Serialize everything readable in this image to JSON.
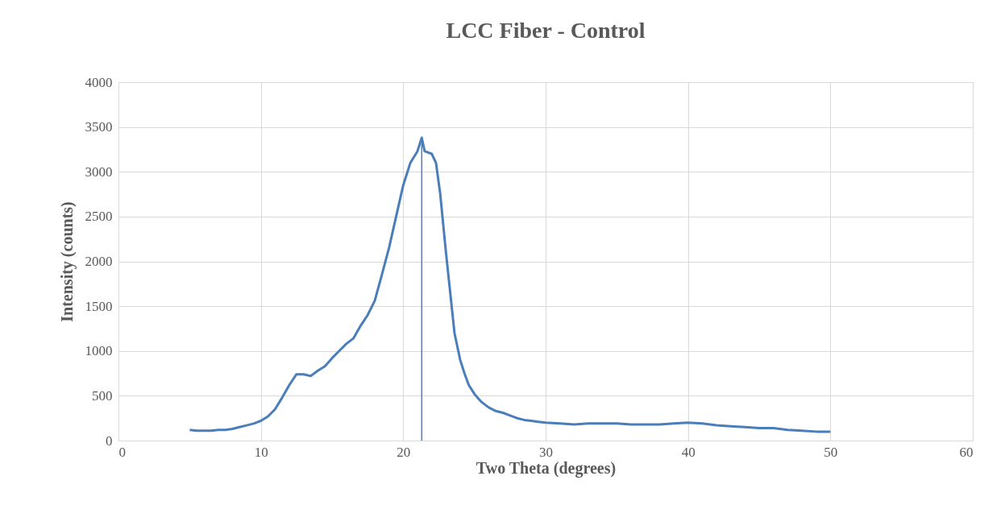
{
  "chart_data": {
    "type": "line",
    "title": "LCC Fiber - Control",
    "xlabel": "Two Theta (degrees)",
    "ylabel": "Intensity (counts)",
    "xlim": [
      0,
      60
    ],
    "xticks": [
      0,
      10,
      20,
      30,
      40,
      50,
      60
    ],
    "ylim": [
      0,
      4000
    ],
    "yticks": [
      0,
      500,
      1000,
      1500,
      2000,
      2500,
      3000,
      3500,
      4000
    ],
    "grid": true,
    "marker": "none",
    "line_style": "solid",
    "series": [
      {
        "color": "#4a7ebb",
        "x": [
          5,
          5.5,
          6,
          6.5,
          7,
          7.5,
          8,
          8.5,
          9,
          9.5,
          10,
          10.5,
          11,
          11.5,
          12,
          12.5,
          13,
          13.5,
          14,
          14.5,
          15,
          15.5,
          16,
          16.5,
          17,
          17.5,
          18,
          18.5,
          19,
          19.5,
          20,
          20.5,
          21,
          21.3,
          21.5,
          22,
          22.3,
          22.6,
          23,
          23.3,
          23.6,
          24,
          24.3,
          24.6,
          25,
          25.5,
          26,
          26.5,
          27,
          27.5,
          28,
          28.5,
          29,
          29.5,
          30,
          31,
          32,
          33,
          34,
          35,
          36,
          37,
          38,
          39,
          40,
          41,
          42,
          43,
          44,
          45,
          46,
          47,
          48,
          49,
          50
        ],
        "values": [
          120,
          110,
          110,
          110,
          120,
          120,
          130,
          150,
          170,
          190,
          220,
          270,
          350,
          480,
          620,
          740,
          740,
          720,
          780,
          830,
          920,
          1000,
          1080,
          1140,
          1280,
          1400,
          1560,
          1850,
          2150,
          2500,
          2850,
          3100,
          3230,
          3380,
          3230,
          3200,
          3100,
          2750,
          2100,
          1650,
          1200,
          900,
          750,
          620,
          520,
          430,
          370,
          330,
          310,
          280,
          250,
          230,
          220,
          210,
          200,
          190,
          180,
          190,
          190,
          190,
          180,
          180,
          180,
          190,
          200,
          190,
          170,
          160,
          150,
          140,
          140,
          120,
          110,
          100,
          100
        ]
      },
      {
        "color": "#4a7ebb",
        "x": [
          21.3,
          21.3
        ],
        "values": [
          0,
          3320
        ]
      }
    ]
  }
}
